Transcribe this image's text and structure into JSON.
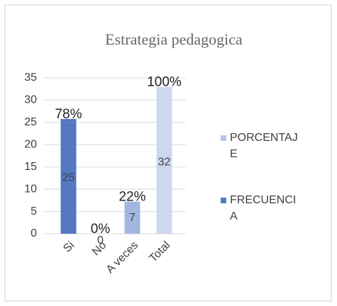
{
  "chart_data": {
    "type": "bar",
    "stacked": true,
    "title": "Estrategia pedagogica",
    "categories": [
      "Si",
      "No",
      "A veces",
      "Total"
    ],
    "series": [
      {
        "name": "FRECUENCIA",
        "color": "#5479c2",
        "point_colors": [
          "#5479c2",
          "#5479c2",
          "#a3b6e2",
          "#cdd7ef"
        ],
        "values": [
          25,
          0,
          7,
          32
        ]
      },
      {
        "name": "PORCENTAJE",
        "color": "#b7c7ea",
        "point_colors": [
          "#5479c2",
          "#5479c2",
          "#a3b6e2",
          "#cdd7ef"
        ],
        "values": [
          0.78,
          0,
          0.22,
          1
        ],
        "value_labels": [
          "78%",
          "0%",
          "22%",
          "100%"
        ]
      }
    ],
    "ylim": [
      0,
      35
    ],
    "yticks": [
      0,
      5,
      10,
      15,
      20,
      25,
      30,
      35
    ],
    "grid": true,
    "legend": "right"
  }
}
